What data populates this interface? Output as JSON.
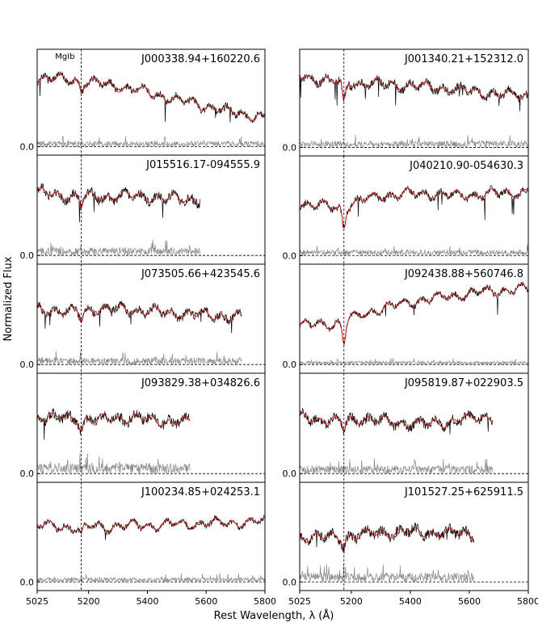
{
  "figure": {
    "xlabel": "Rest Wavelength, λ (Å)",
    "ylabel": "Normalized Flux",
    "feature_label": "MgIb",
    "colors": {
      "observed": "#000000",
      "model": "#d62020",
      "residual": "#888888",
      "frame": "#000000"
    }
  },
  "chart_data": [
    {
      "type": "line",
      "name": "J000338.94+160220.6",
      "column": "left",
      "xlim": [
        5025,
        5800
      ],
      "xticks": [],
      "zero_label": "0.0",
      "feature_line": 5175,
      "x_end": 5800,
      "trend": [
        0.62,
        0.6,
        0.55,
        0.48,
        0.4,
        0.32,
        0.26
      ],
      "noise": 0.03,
      "residual_amp": 0.05
    },
    {
      "type": "line",
      "name": "J015516.17-094555.9",
      "column": "left",
      "xlim": [
        5025,
        5800
      ],
      "xticks": [],
      "zero_label": "0.0",
      "feature_line": 5175,
      "x_end": 5580,
      "trend": [
        0.55,
        0.52,
        0.51,
        0.52,
        0.5,
        0.49
      ],
      "noise": 0.04,
      "residual_amp": 0.07
    },
    {
      "type": "line",
      "name": "J073505.66+423545.6",
      "column": "left",
      "xlim": [
        5025,
        5800
      ],
      "xticks": [],
      "zero_label": "0.0",
      "feature_line": 5175,
      "x_end": 5720,
      "trend": [
        0.48,
        0.46,
        0.49,
        0.47,
        0.45,
        0.43,
        0.42
      ],
      "noise": 0.035,
      "residual_amp": 0.06
    },
    {
      "type": "line",
      "name": "J093829.38+034826.6",
      "column": "left",
      "xlim": [
        5025,
        5800
      ],
      "xticks": [],
      "zero_label": "0.0",
      "feature_line": 5175,
      "x_end": 5545,
      "trend": [
        0.5,
        0.48,
        0.47,
        0.49,
        0.46,
        0.45
      ],
      "noise": 0.045,
      "residual_amp": 0.09
    },
    {
      "type": "line",
      "name": "J100234.85+024253.1",
      "column": "left",
      "xlim": [
        5025,
        5800
      ],
      "xticks": [
        5025,
        5200,
        5400,
        5600,
        5800
      ],
      "zero_label": "0.0",
      "feature_line": 5175,
      "x_end": 5800,
      "trend": [
        0.5,
        0.48,
        0.49,
        0.5,
        0.51,
        0.52,
        0.53
      ],
      "noise": 0.025,
      "residual_amp": 0.04
    },
    {
      "type": "line",
      "name": "J001340.21+152312.0",
      "column": "right",
      "xlim": [
        5025,
        5800
      ],
      "xticks": [],
      "zero_label": "0.0",
      "feature_line": 5175,
      "x_end": 5800,
      "trend": [
        0.64,
        0.58,
        0.57,
        0.55,
        0.52,
        0.48,
        0.46
      ],
      "noise": 0.035,
      "residual_amp": 0.06
    },
    {
      "type": "line",
      "name": "J040210.90-054630.3",
      "column": "right",
      "xlim": [
        5025,
        5800
      ],
      "xticks": [],
      "zero_label": "0.0",
      "feature_line": 5175,
      "x_end": 5800,
      "trend": [
        0.46,
        0.42,
        0.52,
        0.55,
        0.53,
        0.54,
        0.56
      ],
      "noise": 0.03,
      "residual_amp": 0.05
    },
    {
      "type": "line",
      "name": "J092438.88+560746.8",
      "column": "right",
      "xlim": [
        5025,
        5800
      ],
      "xticks": [],
      "zero_label": "0.0",
      "feature_line": 5175,
      "x_end": 5800,
      "trend": [
        0.34,
        0.36,
        0.48,
        0.55,
        0.6,
        0.64,
        0.66
      ],
      "noise": 0.025,
      "residual_amp": 0.03
    },
    {
      "type": "line",
      "name": "J095819.87+022903.5",
      "column": "right",
      "xlim": [
        5025,
        5800
      ],
      "xticks": [],
      "zero_label": "0.0",
      "feature_line": 5175,
      "x_end": 5680,
      "trend": [
        0.5,
        0.46,
        0.48,
        0.44,
        0.43,
        0.47,
        0.5
      ],
      "noise": 0.04,
      "residual_amp": 0.07
    },
    {
      "type": "line",
      "name": "J101527.25+625911.5",
      "column": "right",
      "xlim": [
        5025,
        5800
      ],
      "xticks": [
        5025,
        5200,
        5400,
        5600,
        5800
      ],
      "zero_label": "0.0",
      "feature_line": 5175,
      "x_end": 5615,
      "trend": [
        0.4,
        0.39,
        0.42,
        0.44,
        0.43,
        0.42
      ],
      "noise": 0.045,
      "residual_amp": 0.08
    }
  ]
}
